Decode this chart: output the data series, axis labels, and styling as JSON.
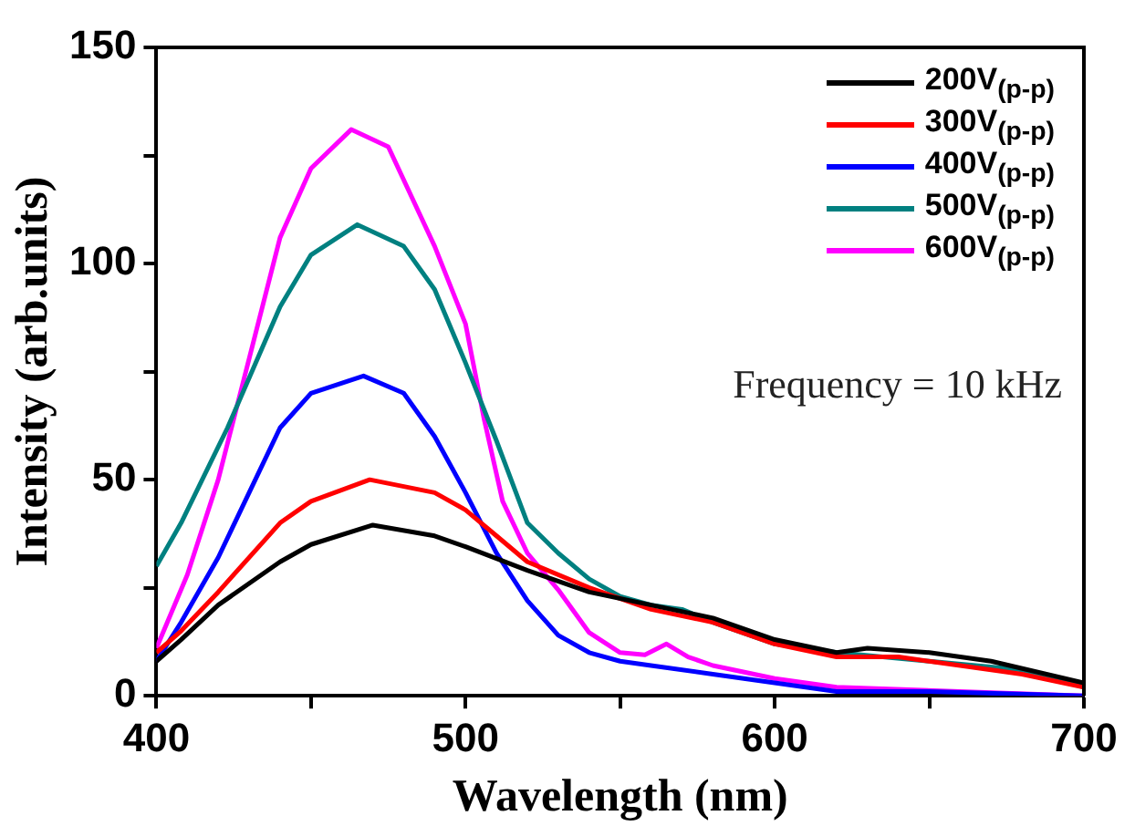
{
  "chart_data": {
    "type": "line",
    "xlabel": "Wavelength (nm)",
    "ylabel": "Intensity (arb.units)",
    "xlim": [
      400,
      700
    ],
    "xticks": [
      400,
      {
        "value": 450,
        "label": null
      },
      500,
      {
        "value": 550,
        "label": null
      },
      600,
      {
        "value": 650,
        "label": null
      },
      700
    ],
    "ylim": [
      0,
      150
    ],
    "yticks": [
      0,
      {
        "value": 25,
        "label": null
      },
      50,
      {
        "value": 75,
        "label": null
      },
      100,
      {
        "value": 125,
        "label": null
      },
      150
    ],
    "grid": false,
    "legend": "top right",
    "marker": "none",
    "line_style": "solid",
    "annotations": [
      "Frequency = 10 kHz"
    ],
    "series": [
      {
        "name": "200V$_{(p-p)}$",
        "color": "#000000",
        "x": [
          400,
          408,
          420,
          440,
          450,
          470,
          490,
          500,
          520,
          540,
          560,
          580,
          600,
          620,
          630,
          650,
          670,
          700
        ],
        "values": [
          8,
          13,
          21,
          31,
          35,
          39.5,
          37,
          34.5,
          29,
          24,
          21,
          18,
          13,
          10,
          11,
          10,
          8,
          3
        ]
      },
      {
        "name": "300V$_{(p-p)}$",
        "color": "#ff0000",
        "x": [
          400,
          408,
          420,
          440,
          450,
          469,
          490,
          500,
          510,
          520,
          540,
          560,
          580,
          600,
          620,
          640,
          660,
          680,
          700
        ],
        "values": [
          10,
          15,
          24,
          40,
          45,
          50,
          47,
          43,
          37,
          31,
          25,
          20,
          17,
          12,
          9,
          9,
          7,
          5,
          2
        ]
      },
      {
        "name": "400V$_{(p-p)}$",
        "color": "#0000ff",
        "x": [
          400,
          408,
          420,
          440,
          450,
          467,
          480,
          490,
          500,
          510,
          520,
          530,
          540,
          550,
          560,
          580,
          600,
          620,
          650,
          700
        ],
        "values": [
          8,
          17,
          32,
          62,
          70,
          74,
          70,
          60,
          47,
          33,
          22,
          14,
          10,
          8,
          7,
          5,
          3,
          1,
          1,
          0
        ]
      },
      {
        "name": "500V$_{(p-p)}$",
        "color": "#008080",
        "x": [
          400,
          408,
          423,
          440,
          450,
          465,
          480,
          490,
          500,
          510,
          520,
          530,
          540,
          550,
          560,
          570,
          580,
          600,
          620,
          650,
          680,
          700
        ],
        "values": [
          30,
          40,
          62,
          90,
          102,
          109,
          104,
          94,
          77,
          59,
          40,
          33,
          27,
          23,
          21,
          20,
          17,
          12,
          10,
          8,
          6,
          2
        ]
      },
      {
        "name": "600V$_{(p-p)}$",
        "color": "#ff00ff",
        "x": [
          400,
          410,
          420,
          440,
          450,
          463,
          475,
          490,
          500,
          506,
          512,
          520,
          530,
          540,
          550,
          558,
          565,
          572,
          580,
          600,
          620,
          700
        ],
        "values": [
          11,
          28,
          50,
          106,
          122,
          131,
          127,
          104,
          86,
          64,
          45,
          33,
          24.5,
          14.6,
          10,
          9.5,
          12,
          9,
          7,
          4,
          2,
          0
        ]
      }
    ]
  }
}
